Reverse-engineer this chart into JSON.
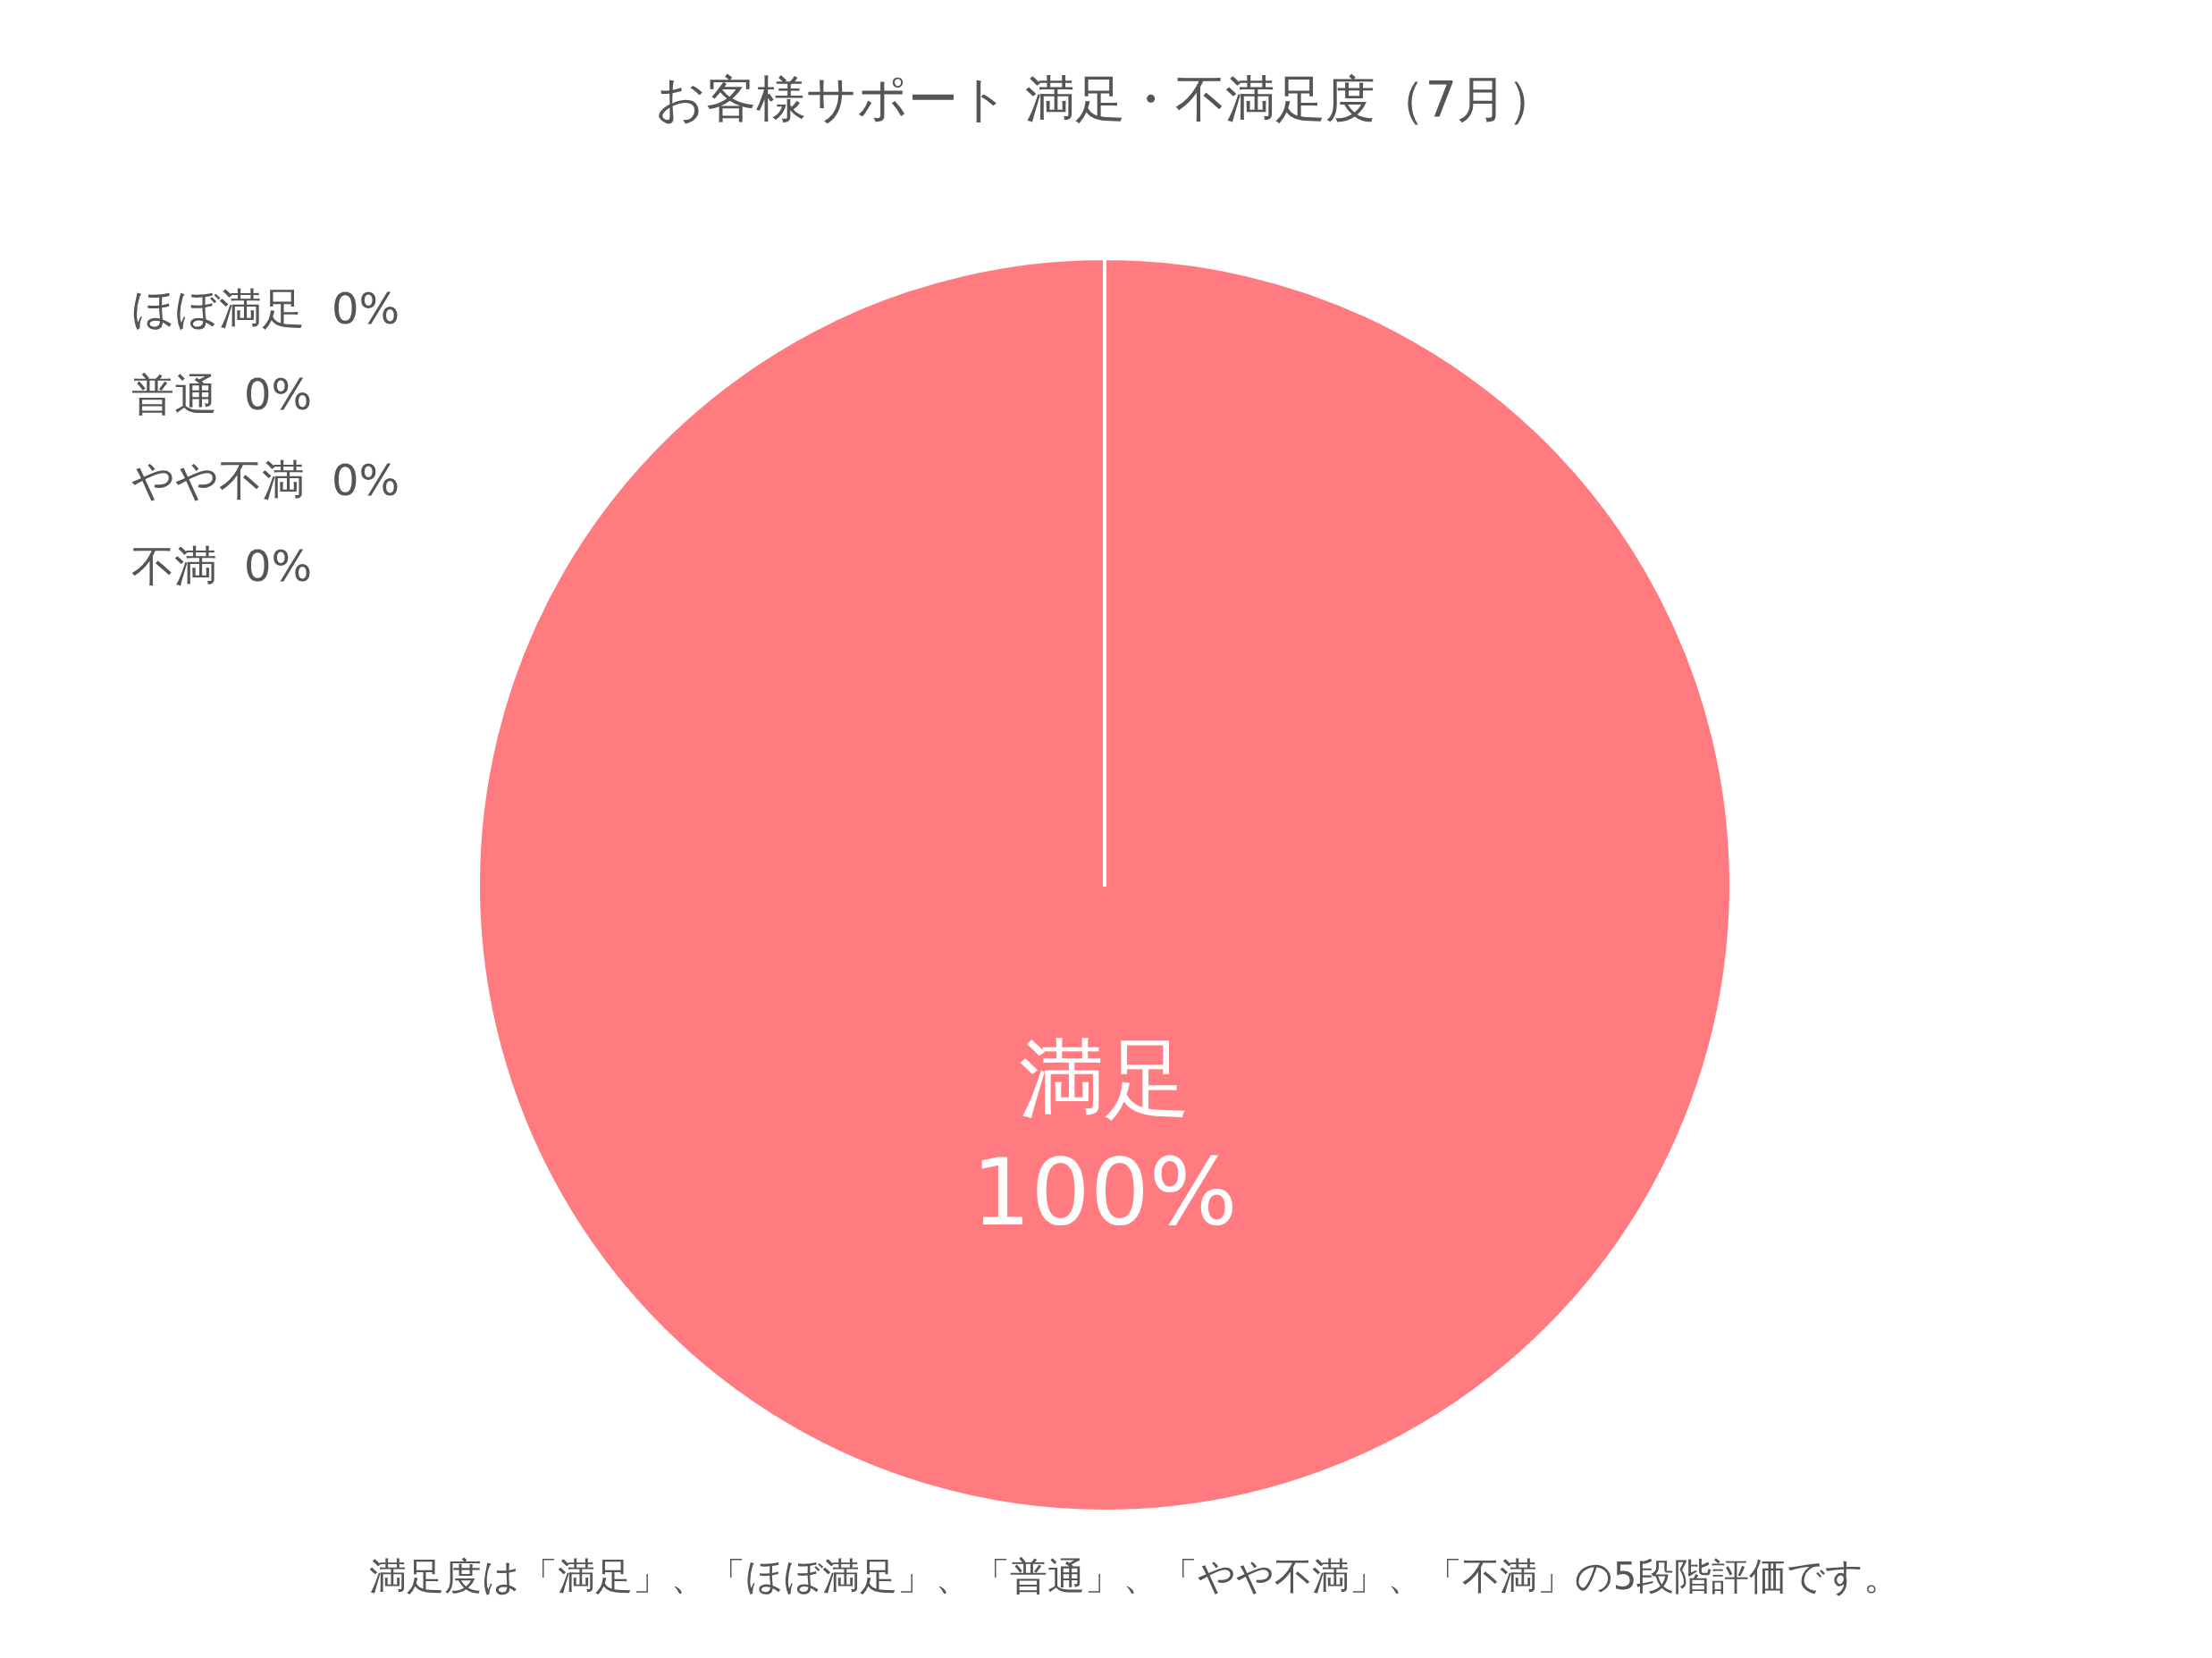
{
  "chart_data": {
    "type": "pie",
    "title": "お客様サポート 満足・不満足度（7月）",
    "categories": [
      "満足",
      "ほぼ満足",
      "普通",
      "やや不満",
      "不満"
    ],
    "values": [
      100,
      0,
      0,
      0,
      0
    ],
    "colors": [
      "#ff7b7f",
      "#ffb27f",
      "#c9c9c9",
      "#7fb2ff",
      "#5b7fd6"
    ],
    "value_labels": [
      "100%",
      "0%",
      "0%",
      "0%",
      "0%"
    ],
    "annotations": [
      "満足度は「満足」、「ほぼ満足」、「普通」、「やや不満」、「不満」の5段階評価です。"
    ]
  }
}
